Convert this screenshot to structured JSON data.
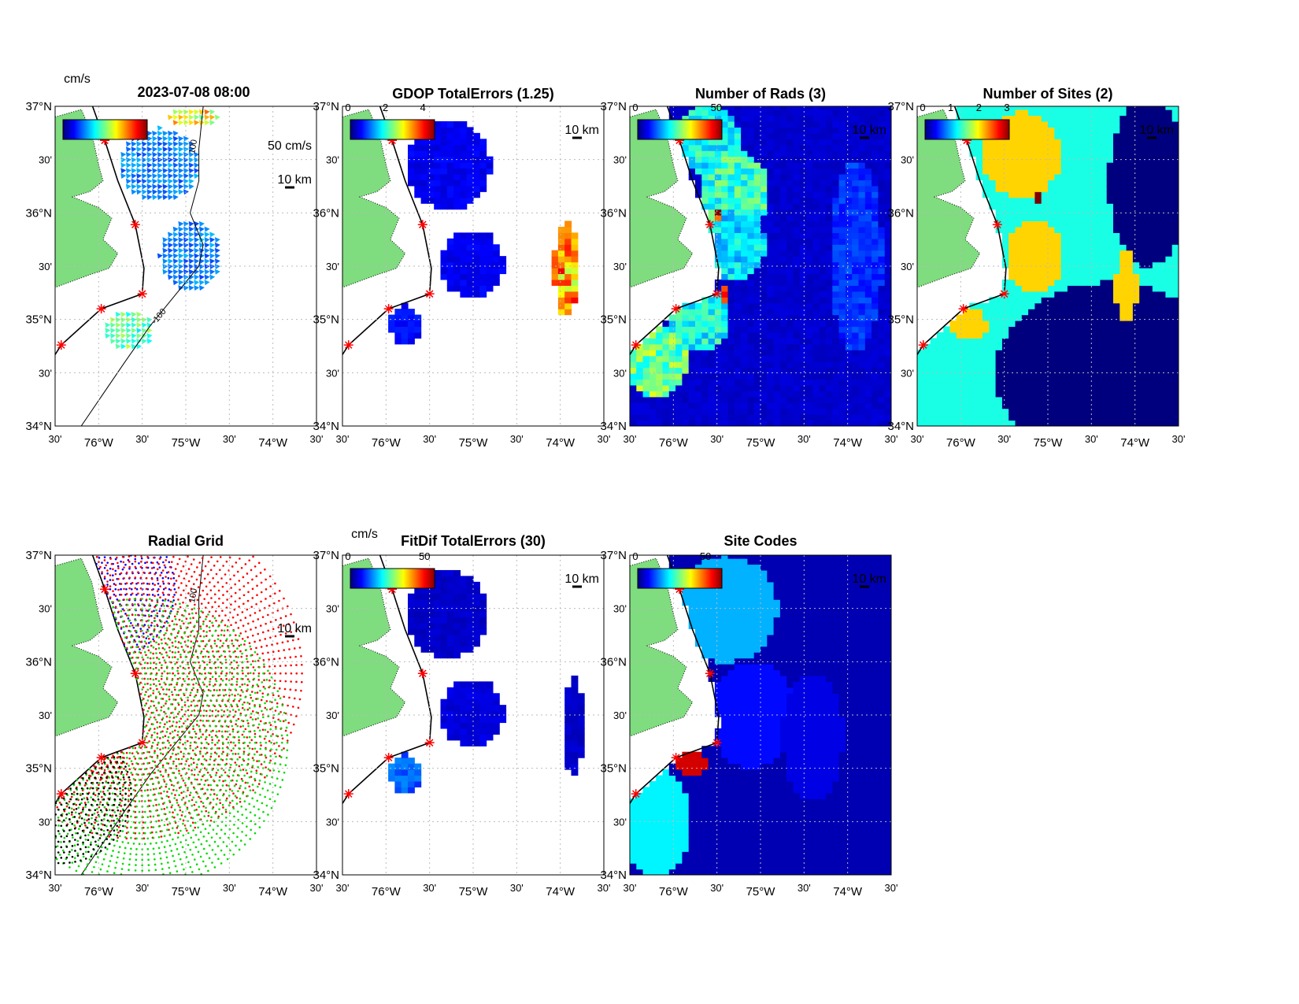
{
  "figure": {
    "main_title": "2023-07-08 08:00",
    "lat_ticks": [
      "37°N",
      "30'",
      "36°N",
      "30'",
      "35°N",
      "30'",
      "34°N"
    ],
    "lon_ticks": [
      "30'",
      "76°W",
      "30'",
      "75°W",
      "30'",
      "74°W",
      "30'"
    ],
    "lon_range": [
      -76.5,
      -73.5
    ],
    "lat_range": [
      34,
      37
    ],
    "scale_bar_label": "10 km",
    "colors": {
      "land": "#7fdc7f",
      "site_marker": "#ff0000",
      "grid": "#bbbbbb"
    }
  },
  "sites": [
    {
      "lon": -75.93,
      "lat": 36.68
    },
    {
      "lon": -75.58,
      "lat": 35.89
    },
    {
      "lon": -75.5,
      "lat": 35.24
    },
    {
      "lon": -75.97,
      "lat": 35.1
    },
    {
      "lon": -76.43,
      "lat": 34.76
    }
  ],
  "panels": [
    {
      "id": "totals",
      "title": "2023-07-08 08:00",
      "type": "vectors",
      "cbar_unit": "cm/s",
      "cbar_ticks": [],
      "cbar_range": [
        0,
        50
      ],
      "vector_scale_label": "50 cm/s",
      "contour_labels": [
        "100",
        "-100"
      ],
      "blobs": [
        [
          -75.3,
          36.45,
          0.45,
          0.35,
          12
        ],
        [
          -74.95,
          35.6,
          0.35,
          0.33,
          12
        ],
        [
          -75.65,
          34.9,
          0.28,
          0.18,
          22
        ],
        [
          -74.9,
          36.9,
          0.3,
          0.1,
          30
        ]
      ]
    },
    {
      "id": "gdop",
      "title": "GDOP TotalErrors (1.25)",
      "type": "heat",
      "cbar_ticks": [
        "0",
        "2",
        "4"
      ],
      "cbar_range": [
        0,
        4.5
      ],
      "contour_labels": [
        "1.25"
      ],
      "blobs": [
        [
          -75.28,
          36.45,
          0.48,
          0.42,
          0.5
        ],
        [
          -75.01,
          35.52,
          0.36,
          0.32,
          0.5
        ],
        [
          -75.78,
          34.95,
          0.18,
          0.18,
          0.6
        ],
        [
          -73.93,
          35.48,
          0.14,
          0.45,
          3.2
        ]
      ]
    },
    {
      "id": "nrads",
      "title": "Number of Rads (3)",
      "type": "heat",
      "cbar_ticks": [
        "0",
        "50"
      ],
      "cbar_range": [
        0,
        52
      ],
      "background": 4,
      "contour_labels": [
        "3"
      ],
      "blobs": [
        [
          -73.9,
          35.6,
          0.3,
          0.9,
          9
        ],
        [
          -75.6,
          36.7,
          0.35,
          0.35,
          20
        ],
        [
          -75.3,
          36.2,
          0.4,
          0.4,
          22
        ],
        [
          -75.3,
          35.7,
          0.35,
          0.35,
          18
        ],
        [
          -75.7,
          35.0,
          0.35,
          0.3,
          20
        ],
        [
          -76.2,
          34.6,
          0.35,
          0.35,
          25
        ],
        [
          -75.5,
          36.0,
          0.06,
          0.06,
          50
        ],
        [
          -75.41,
          35.25,
          0.07,
          0.07,
          50
        ]
      ]
    },
    {
      "id": "nsites",
      "title": "Number of Sites (2)",
      "type": "heat",
      "cbar_ticks": [
        "0",
        "1",
        "2",
        "3"
      ],
      "cbar_range": [
        0,
        3
      ],
      "background": 1.2,
      "contour_labels": [
        "2"
      ],
      "blobs": [
        [
          -74.3,
          34.5,
          1.3,
          0.85,
          0
        ],
        [
          -73.85,
          36.3,
          0.45,
          0.8,
          0
        ],
        [
          -75.3,
          36.55,
          0.45,
          0.4,
          2
        ],
        [
          -75.15,
          35.6,
          0.33,
          0.33,
          2
        ],
        [
          -74.1,
          35.3,
          0.12,
          0.35,
          2
        ],
        [
          -75.9,
          34.95,
          0.2,
          0.15,
          2
        ],
        [
          -75.1,
          36.15,
          0.04,
          0.04,
          3
        ]
      ]
    },
    {
      "id": "radgrid",
      "title": "Radial Grid",
      "type": "radial",
      "contour_labels": [
        "100",
        "-100"
      ],
      "site_colors": [
        "#0000ff",
        "#ff0000",
        "#00dd00",
        "#ff0000",
        "#000000"
      ],
      "site_max_range_deg": [
        0.65,
        1.6,
        1.4,
        0.2,
        0.7
      ]
    },
    {
      "id": "fitdif",
      "title": "FitDif TotalErrors (30)",
      "type": "heat",
      "cbar_unit": "cm/s",
      "cbar_ticks": [
        "0",
        "50"
      ],
      "cbar_range": [
        0,
        55
      ],
      "blobs": [
        [
          -75.3,
          36.45,
          0.45,
          0.42,
          4
        ],
        [
          -75.01,
          35.52,
          0.36,
          0.32,
          5
        ],
        [
          -75.78,
          34.95,
          0.18,
          0.18,
          12
        ],
        [
          -73.85,
          35.4,
          0.12,
          0.45,
          4
        ]
      ]
    },
    {
      "id": "sitecodes",
      "title": "Site Codes",
      "type": "heat",
      "cbar_ticks": [
        "0",
        "50"
      ],
      "cbar_range": [
        0,
        60
      ],
      "background": 3,
      "blobs": [
        [
          -75.4,
          36.5,
          0.6,
          0.5,
          18
        ],
        [
          -75.1,
          35.5,
          0.5,
          0.5,
          8
        ],
        [
          -74.4,
          35.3,
          0.35,
          0.6,
          6
        ],
        [
          -76.2,
          34.5,
          0.4,
          0.5,
          22
        ],
        [
          -75.8,
          35.05,
          0.17,
          0.12,
          55
        ]
      ]
    }
  ]
}
